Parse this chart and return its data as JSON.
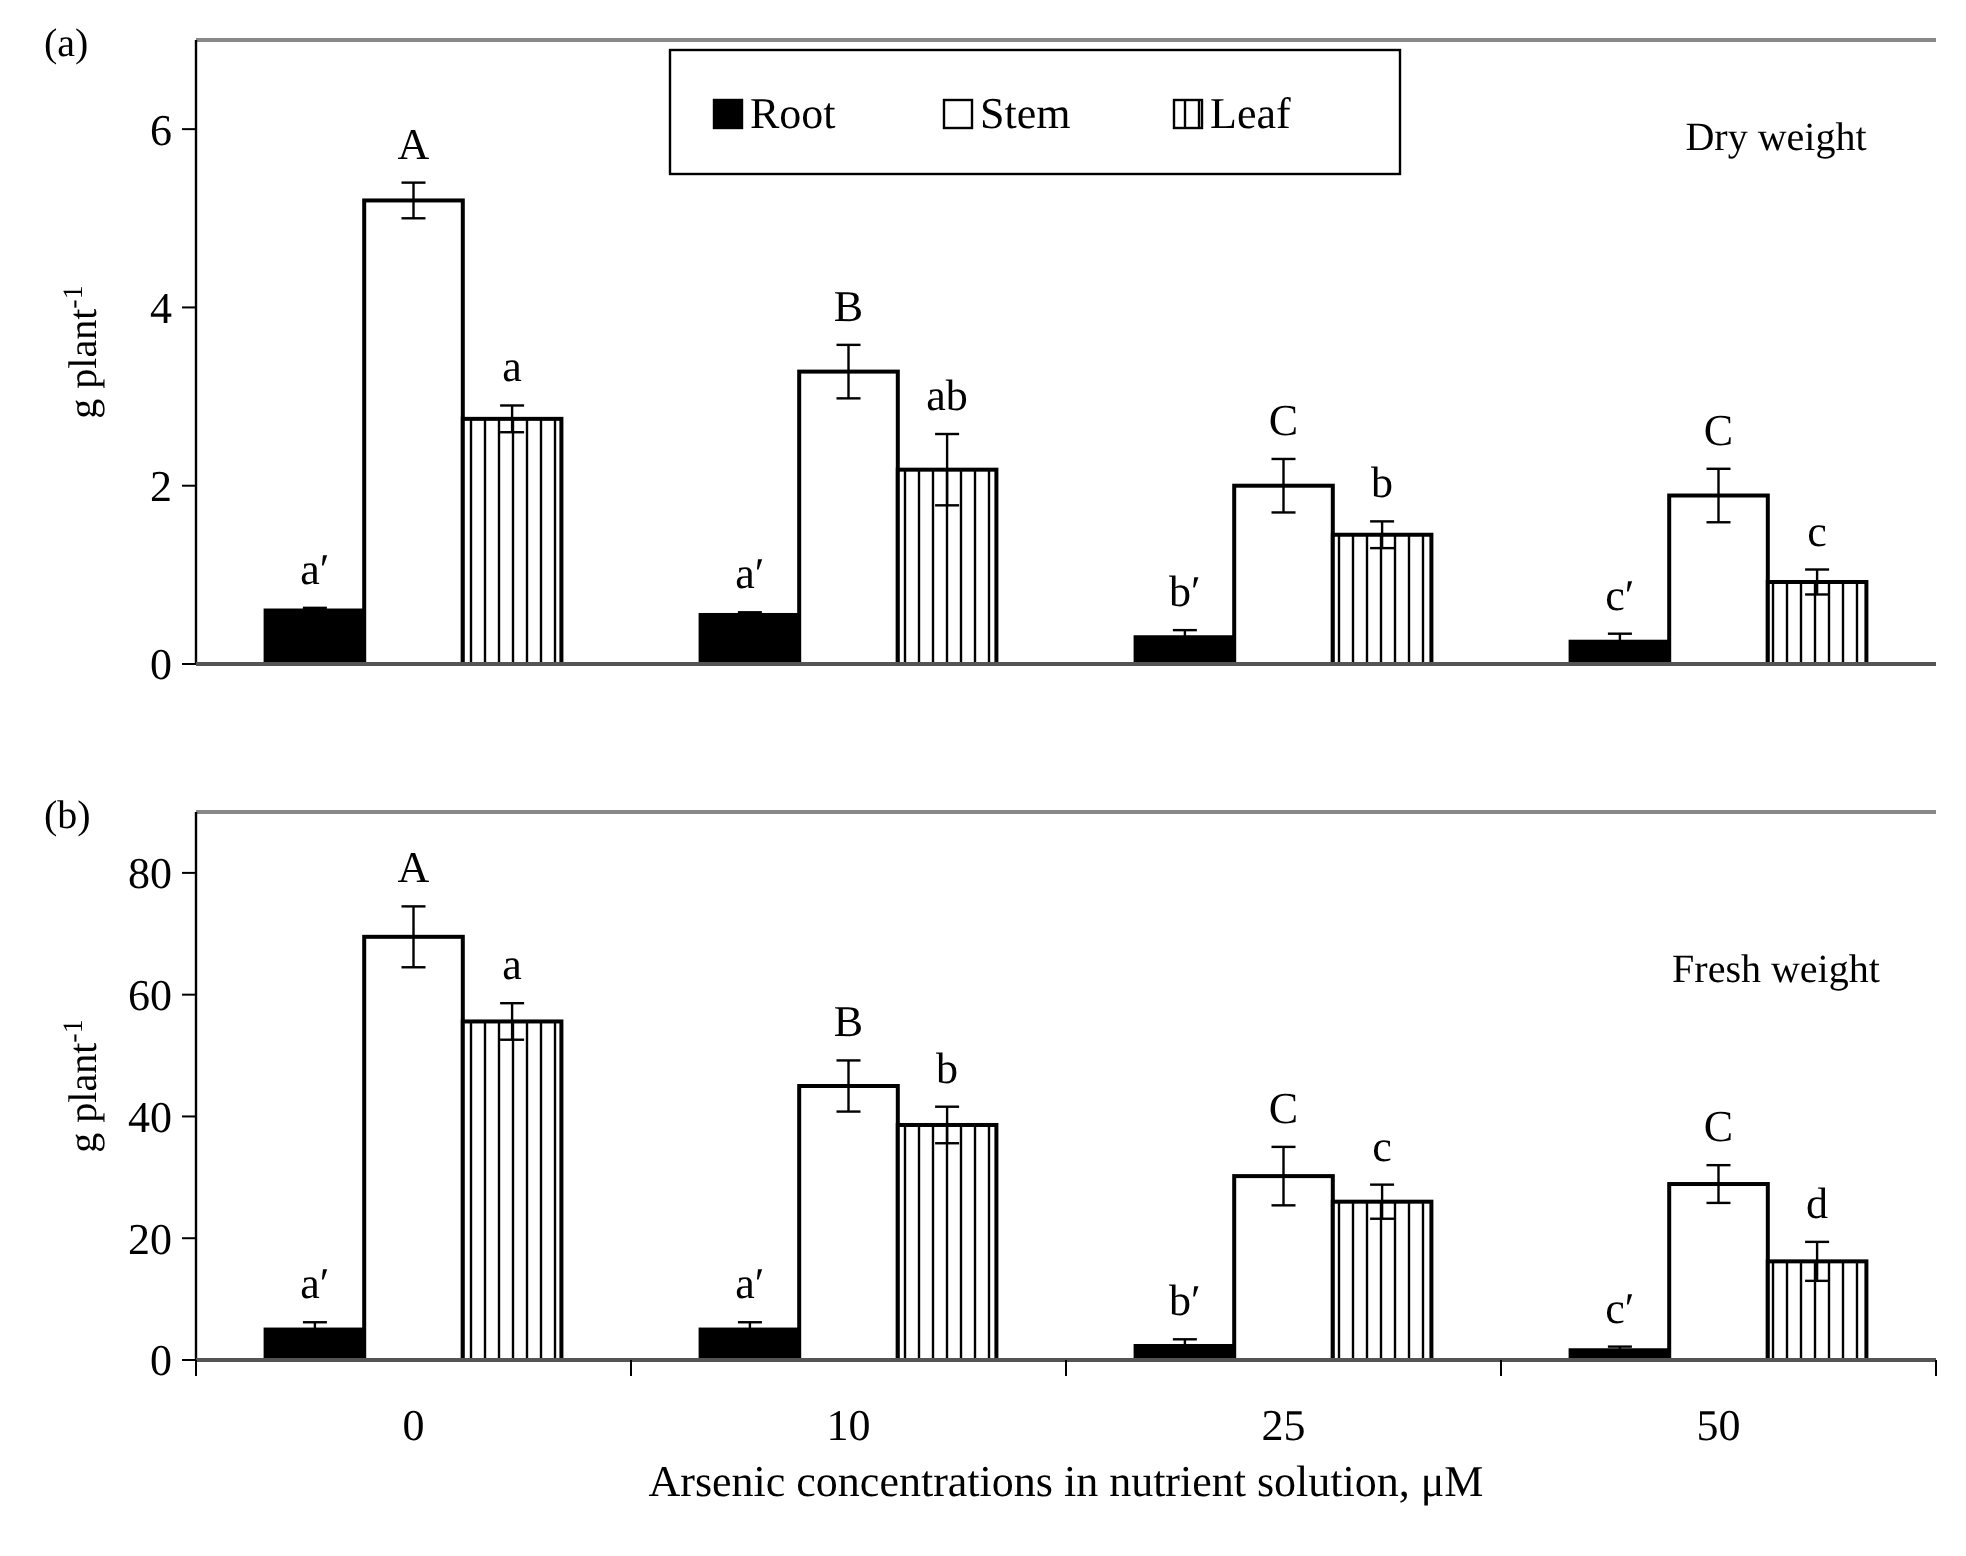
{
  "chart_data": [
    {
      "type": "bar",
      "title": "(a)",
      "ylabel": "g plant$^{-1}$",
      "categories": [
        "0",
        "10",
        "25",
        "50"
      ],
      "ylim": [
        0,
        7
      ],
      "yticks": [
        0,
        2,
        4,
        6
      ],
      "tick_labels": "y",
      "legend": "top",
      "annotations": [
        "Dry weight"
      ],
      "series": [
        {
          "name": "Root",
          "color": "#000000",
          "values": [
            0.6,
            0.55,
            0.3,
            0.25
          ],
          "errors": [
            0.03,
            0.03,
            0.08,
            0.09
          ],
          "value_labels": [
            "a′",
            "a′",
            "b′",
            "c′"
          ]
        },
        {
          "name": "Stem",
          "color": "#ffffff",
          "values": [
            5.2,
            3.28,
            2.0,
            1.89
          ],
          "errors": [
            0.2,
            0.3,
            0.3,
            0.3
          ],
          "value_labels": [
            "A",
            "B",
            "C",
            "C"
          ]
        },
        {
          "name": "Leaf",
          "color": "#ffffff",
          "values": [
            2.75,
            2.18,
            1.45,
            0.92
          ],
          "errors": [
            0.15,
            0.4,
            0.15,
            0.14
          ],
          "value_labels": [
            "a",
            "ab",
            "b",
            "c"
          ]
        }
      ]
    },
    {
      "type": "bar",
      "title": "(b)",
      "ylabel": "g plant$^{-1}$",
      "xlabel": "Arsenic concentrations in nutrient solution, μM",
      "categories": [
        "0",
        "10",
        "25",
        "50"
      ],
      "ylim": [
        0,
        90
      ],
      "yticks": [
        0,
        20,
        40,
        60,
        80
      ],
      "annotations": [
        "Fresh weight"
      ],
      "series": [
        {
          "color": "#000000",
          "values": [
            5,
            5,
            2.3,
            1.6
          ],
          "errors": [
            1.2,
            1.2,
            1.1,
            0.6
          ],
          "value_labels": [
            "a′",
            "a′",
            "b′",
            "c′"
          ]
        },
        {
          "color": "#ffffff",
          "values": [
            69.5,
            45,
            30.2,
            28.9
          ],
          "errors": [
            5,
            4.2,
            4.8,
            3.1
          ],
          "value_labels": [
            "A",
            "B",
            "C",
            "C"
          ]
        },
        {
          "color": "#ffffff",
          "values": [
            55.6,
            38.6,
            26,
            16.2
          ],
          "errors": [
            3,
            3,
            2.8,
            3.2
          ],
          "value_labels": [
            "a",
            "b",
            "c",
            "d"
          ]
        }
      ]
    }
  ]
}
